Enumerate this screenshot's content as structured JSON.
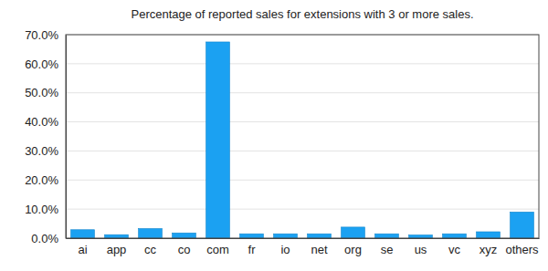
{
  "chart_data": {
    "type": "bar",
    "title": "Percentage of reported sales for extensions with 3 or more sales.",
    "categories": [
      "ai",
      "app",
      "cc",
      "co",
      "com",
      "fr",
      "io",
      "net",
      "org",
      "se",
      "us",
      "vc",
      "xyz",
      "others"
    ],
    "values": [
      2.9,
      1.2,
      3.3,
      1.8,
      67.5,
      1.5,
      1.5,
      1.5,
      3.8,
      1.5,
      1.1,
      1.5,
      2.2,
      9.0
    ],
    "color": "#1ba1f2",
    "ylim": [
      0,
      70
    ],
    "yticks": [
      {
        "value": 0,
        "label": "0.0%"
      },
      {
        "value": 10,
        "label": "10.0%"
      },
      {
        "value": 20,
        "label": "20.0%"
      },
      {
        "value": 30,
        "label": "30.0%"
      },
      {
        "value": 40,
        "label": "40.0%"
      },
      {
        "value": 50,
        "label": "50.0%"
      },
      {
        "value": 60,
        "label": "60.0%"
      },
      {
        "value": 70,
        "label": "70.0%"
      }
    ],
    "grid": true
  }
}
